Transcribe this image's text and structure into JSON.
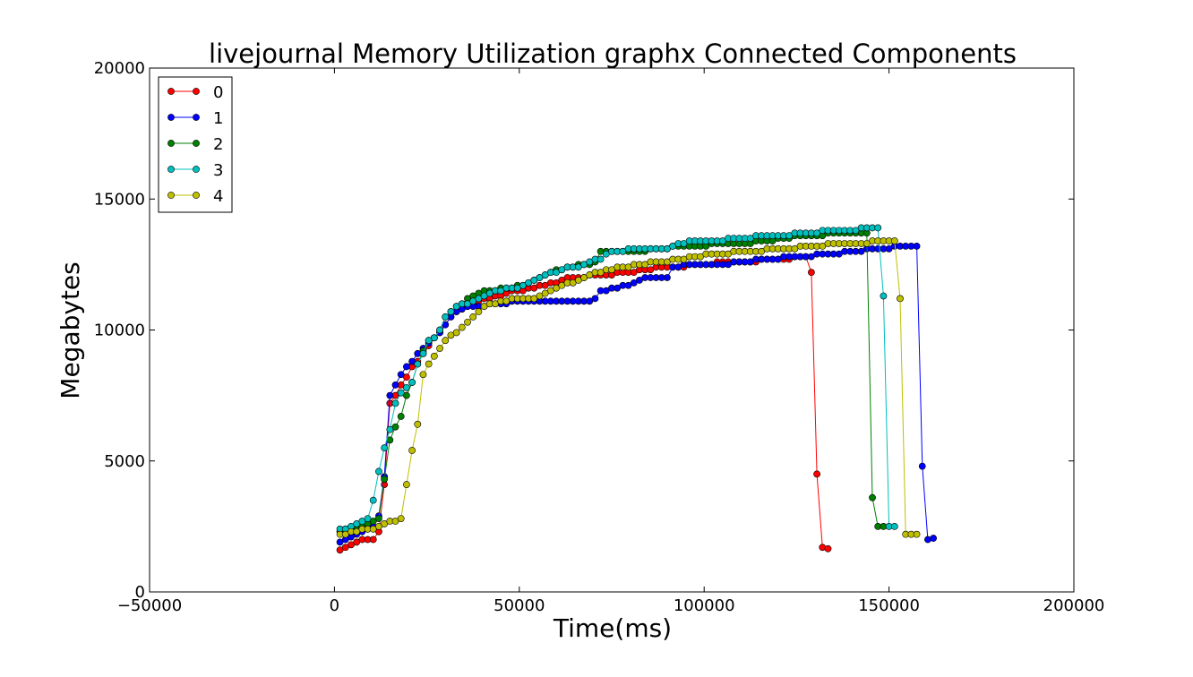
{
  "chart_data": {
    "type": "line",
    "title": "livejournal Memory Utilization graphx Connected Components",
    "xlabel": "Time(ms)",
    "ylabel": "Megabytes",
    "xlim": [
      -50000,
      200000
    ],
    "ylim": [
      0,
      20000
    ],
    "xticks": [
      -50000,
      0,
      50000,
      100000,
      150000,
      200000
    ],
    "yticks": [
      0,
      5000,
      10000,
      15000,
      20000
    ],
    "xtick_labels": [
      "−50000",
      "0",
      "50000",
      "100000",
      "150000",
      "200000"
    ],
    "ytick_labels": [
      "0",
      "5000",
      "10000",
      "15000",
      "20000"
    ],
    "grid": false,
    "legend_position": "top-left",
    "series": [
      {
        "name": "0",
        "color": "#ff0000",
        "x": [
          1500,
          3000,
          4500,
          6000,
          7500,
          9000,
          10500,
          12000,
          13500,
          15000,
          16500,
          18000,
          19500,
          21000,
          22500,
          24000,
          25500,
          27000,
          28500,
          30000,
          31500,
          33000,
          34500,
          36000,
          37500,
          39000,
          40500,
          42000,
          43500,
          45000,
          46500,
          48000,
          49500,
          51000,
          52500,
          54000,
          55500,
          57000,
          58500,
          60000,
          61500,
          63000,
          64500,
          66000,
          67500,
          69000,
          70500,
          72000,
          73500,
          75000,
          76500,
          78000,
          79500,
          81000,
          82500,
          84000,
          85500,
          87000,
          88500,
          90000,
          91500,
          93000,
          94500,
          96000,
          97500,
          99000,
          100500,
          102000,
          103500,
          105000,
          106500,
          108000,
          109500,
          111000,
          112500,
          114000,
          115500,
          117000,
          118500,
          120000,
          121500,
          123000,
          124500,
          126000,
          127500,
          129000,
          130500,
          132000,
          133500
        ],
        "y": [
          1600,
          1700,
          1800,
          1900,
          2000,
          2000,
          2000,
          2300,
          4100,
          7200,
          7500,
          7900,
          8200,
          8600,
          8800,
          9100,
          9400,
          9700,
          9900,
          10200,
          10500,
          10700,
          10800,
          10900,
          11000,
          11100,
          11200,
          11200,
          11300,
          11300,
          11400,
          11500,
          11500,
          11500,
          11600,
          11600,
          11700,
          11700,
          11800,
          11800,
          11900,
          12000,
          12000,
          12000,
          12000,
          12100,
          12100,
          12100,
          12100,
          12100,
          12200,
          12200,
          12200,
          12200,
          12300,
          12300,
          12300,
          12400,
          12400,
          12400,
          12400,
          12400,
          12400,
          12500,
          12500,
          12500,
          12500,
          12500,
          12600,
          12600,
          12600,
          12600,
          12600,
          12600,
          12600,
          12600,
          12700,
          12700,
          12700,
          12700,
          12700,
          12700,
          12800,
          12800,
          12800,
          12200,
          4500,
          1700,
          1650
        ]
      },
      {
        "name": "1",
        "color": "#0000ff",
        "x": [
          1500,
          3000,
          4500,
          6000,
          7500,
          9000,
          10500,
          12000,
          13500,
          15000,
          16500,
          18000,
          19500,
          21000,
          22500,
          24000,
          25500,
          27000,
          28500,
          30000,
          31500,
          33000,
          34500,
          36000,
          37500,
          39000,
          40500,
          42000,
          43500,
          45000,
          46500,
          48000,
          49500,
          51000,
          52500,
          54000,
          55500,
          57000,
          58500,
          60000,
          61500,
          63000,
          64500,
          66000,
          67500,
          69000,
          70500,
          72000,
          73500,
          75000,
          76500,
          78000,
          79500,
          81000,
          82500,
          84000,
          85500,
          87000,
          88500,
          90000,
          91500,
          93000,
          94500,
          96000,
          97500,
          99000,
          100500,
          102000,
          103500,
          105000,
          106500,
          108000,
          109500,
          111000,
          112500,
          114000,
          115500,
          117000,
          118500,
          120000,
          121500,
          123000,
          124500,
          126000,
          127500,
          129000,
          130500,
          132000,
          133500,
          135000,
          136500,
          138000,
          139500,
          141000,
          142500,
          144000,
          145500,
          147000,
          148500,
          150000,
          151500,
          153000,
          154500,
          156000,
          157500,
          159000,
          160500,
          162000
        ],
        "y": [
          1900,
          2000,
          2100,
          2200,
          2300,
          2400,
          2500,
          2900,
          4400,
          7500,
          7900,
          8300,
          8600,
          8800,
          9100,
          9300,
          9500,
          9700,
          9900,
          10200,
          10500,
          10700,
          10800,
          10900,
          10900,
          10900,
          10900,
          11000,
          11000,
          11000,
          11000,
          11100,
          11100,
          11100,
          11100,
          11100,
          11100,
          11100,
          11100,
          11100,
          11100,
          11100,
          11100,
          11100,
          11100,
          11100,
          11200,
          11500,
          11500,
          11600,
          11600,
          11700,
          11700,
          11800,
          11900,
          12000,
          12000,
          12000,
          12000,
          12000,
          12400,
          12400,
          12500,
          12500,
          12500,
          12500,
          12500,
          12500,
          12500,
          12500,
          12500,
          12600,
          12600,
          12600,
          12600,
          12700,
          12700,
          12700,
          12700,
          12700,
          12800,
          12800,
          12800,
          12800,
          12800,
          12800,
          12900,
          12900,
          12900,
          12900,
          12900,
          13000,
          13000,
          13000,
          13000,
          13100,
          13100,
          13100,
          13100,
          13100,
          13200,
          13200,
          13200,
          13200,
          13200,
          4800,
          2000,
          2050
        ]
      },
      {
        "name": "2",
        "color": "#008000",
        "x": [
          1500,
          3000,
          4500,
          6000,
          7500,
          9000,
          10500,
          12000,
          13500,
          15000,
          16500,
          18000,
          19500,
          21000,
          22500,
          24000,
          25500,
          27000,
          28500,
          30000,
          31500,
          33000,
          34500,
          36000,
          37500,
          39000,
          40500,
          42000,
          43500,
          45000,
          46500,
          48000,
          49500,
          51000,
          52500,
          54000,
          55500,
          57000,
          58500,
          60000,
          61500,
          63000,
          64500,
          66000,
          67500,
          69000,
          70500,
          72000,
          73500,
          75000,
          76500,
          78000,
          79500,
          81000,
          82500,
          84000,
          85500,
          87000,
          88500,
          90000,
          91500,
          93000,
          94500,
          96000,
          97500,
          99000,
          100500,
          102000,
          103500,
          105000,
          106500,
          108000,
          109500,
          111000,
          112500,
          114000,
          115500,
          117000,
          118500,
          120000,
          121500,
          123000,
          124500,
          126000,
          127500,
          129000,
          130500,
          132000,
          133500,
          135000,
          136500,
          138000,
          139500,
          141000,
          142500,
          144000,
          145500,
          147000,
          148500
        ],
        "y": [
          2300,
          2400,
          2400,
          2500,
          2500,
          2600,
          2700,
          2800,
          4300,
          5800,
          6300,
          6700,
          7500,
          8000,
          8700,
          9200,
          9600,
          9700,
          10000,
          10500,
          10700,
          10900,
          11000,
          11200,
          11300,
          11400,
          11500,
          11500,
          11500,
          11600,
          11600,
          11600,
          11700,
          11700,
          11800,
          11900,
          12000,
          12100,
          12200,
          12300,
          12300,
          12400,
          12400,
          12500,
          12500,
          12500,
          12600,
          13000,
          13000,
          13000,
          13000,
          13000,
          13000,
          13000,
          13000,
          13000,
          13100,
          13100,
          13100,
          13100,
          13200,
          13200,
          13200,
          13200,
          13200,
          13200,
          13200,
          13300,
          13300,
          13300,
          13300,
          13300,
          13300,
          13300,
          13300,
          13400,
          13400,
          13400,
          13400,
          13500,
          13500,
          13500,
          13600,
          13600,
          13600,
          13600,
          13600,
          13600,
          13700,
          13700,
          13700,
          13700,
          13700,
          13700,
          13700,
          13700,
          3600,
          2500,
          2500
        ]
      },
      {
        "name": "3",
        "color": "#00bfbf",
        "x": [
          1500,
          3000,
          4500,
          6000,
          7500,
          9000,
          10500,
          12000,
          13500,
          15000,
          16500,
          18000,
          19500,
          21000,
          22500,
          24000,
          25500,
          27000,
          28500,
          30000,
          31500,
          33000,
          34500,
          36000,
          37500,
          39000,
          40500,
          42000,
          43500,
          45000,
          46500,
          48000,
          49500,
          51000,
          52500,
          54000,
          55500,
          57000,
          58500,
          60000,
          61500,
          63000,
          64500,
          66000,
          67500,
          69000,
          70500,
          72000,
          73500,
          75000,
          76500,
          78000,
          79500,
          81000,
          82500,
          84000,
          85500,
          87000,
          88500,
          90000,
          91500,
          93000,
          94500,
          96000,
          97500,
          99000,
          100500,
          102000,
          103500,
          105000,
          106500,
          108000,
          109500,
          111000,
          112500,
          114000,
          115500,
          117000,
          118500,
          120000,
          121500,
          123000,
          124500,
          126000,
          127500,
          129000,
          130500,
          132000,
          133500,
          135000,
          136500,
          138000,
          139500,
          141000,
          142500,
          144000,
          145500,
          147000,
          148500,
          150000,
          151500
        ],
        "y": [
          2400,
          2400,
          2500,
          2600,
          2700,
          2800,
          3500,
          4600,
          5500,
          6200,
          7200,
          7600,
          7800,
          8000,
          8700,
          9100,
          9600,
          9700,
          10000,
          10500,
          10700,
          10900,
          11000,
          11000,
          11100,
          11200,
          11300,
          11400,
          11500,
          11500,
          11600,
          11600,
          11600,
          11700,
          11800,
          11900,
          12000,
          12100,
          12200,
          12200,
          12300,
          12400,
          12400,
          12400,
          12500,
          12600,
          12700,
          12700,
          12900,
          13000,
          13000,
          13000,
          13100,
          13100,
          13100,
          13100,
          13100,
          13100,
          13100,
          13100,
          13200,
          13300,
          13300,
          13400,
          13400,
          13400,
          13400,
          13400,
          13400,
          13400,
          13500,
          13500,
          13500,
          13500,
          13500,
          13600,
          13600,
          13600,
          13600,
          13600,
          13600,
          13600,
          13700,
          13700,
          13700,
          13700,
          13700,
          13800,
          13800,
          13800,
          13800,
          13800,
          13800,
          13800,
          13900,
          13900,
          13900,
          13900,
          11300,
          2500,
          2500
        ]
      },
      {
        "name": "4",
        "color": "#bfbf00",
        "x": [
          1500,
          3000,
          4500,
          6000,
          7500,
          9000,
          10500,
          12000,
          13500,
          15000,
          16500,
          18000,
          19500,
          21000,
          22500,
          24000,
          25500,
          27000,
          28500,
          30000,
          31500,
          33000,
          34500,
          36000,
          37500,
          39000,
          40500,
          42000,
          43500,
          45000,
          46500,
          48000,
          49500,
          51000,
          52500,
          54000,
          55500,
          57000,
          58500,
          60000,
          61500,
          63000,
          64500,
          66000,
          67500,
          69000,
          70500,
          72000,
          73500,
          75000,
          76500,
          78000,
          79500,
          81000,
          82500,
          84000,
          85500,
          87000,
          88500,
          90000,
          91500,
          93000,
          94500,
          96000,
          97500,
          99000,
          100500,
          102000,
          103500,
          105000,
          106500,
          108000,
          109500,
          111000,
          112500,
          114000,
          115500,
          117000,
          118500,
          120000,
          121500,
          123000,
          124500,
          126000,
          127500,
          129000,
          130500,
          132000,
          133500,
          135000,
          136500,
          138000,
          139500,
          141000,
          142500,
          144000,
          145500,
          147000,
          148500,
          150000,
          151500,
          153000,
          154500,
          156000,
          157500
        ],
        "y": [
          2200,
          2200,
          2300,
          2300,
          2400,
          2400,
          2400,
          2500,
          2600,
          2700,
          2700,
          2800,
          4100,
          5400,
          6400,
          8300,
          8700,
          9000,
          9300,
          9600,
          9800,
          9900,
          10100,
          10300,
          10500,
          10700,
          10900,
          11000,
          11000,
          11100,
          11100,
          11200,
          11200,
          11200,
          11200,
          11200,
          11300,
          11400,
          11500,
          11600,
          11700,
          11800,
          11800,
          11900,
          12000,
          12100,
          12200,
          12200,
          12300,
          12300,
          12400,
          12400,
          12400,
          12500,
          12500,
          12500,
          12600,
          12600,
          12600,
          12600,
          12700,
          12700,
          12700,
          12800,
          12800,
          12800,
          12900,
          12900,
          12900,
          12900,
          12900,
          13000,
          13000,
          13000,
          13000,
          13000,
          13000,
          13100,
          13100,
          13100,
          13100,
          13100,
          13100,
          13200,
          13200,
          13200,
          13200,
          13200,
          13300,
          13300,
          13300,
          13300,
          13300,
          13300,
          13300,
          13300,
          13400,
          13400,
          13400,
          13400,
          13400,
          11200,
          2200,
          2200,
          2200
        ]
      }
    ]
  }
}
